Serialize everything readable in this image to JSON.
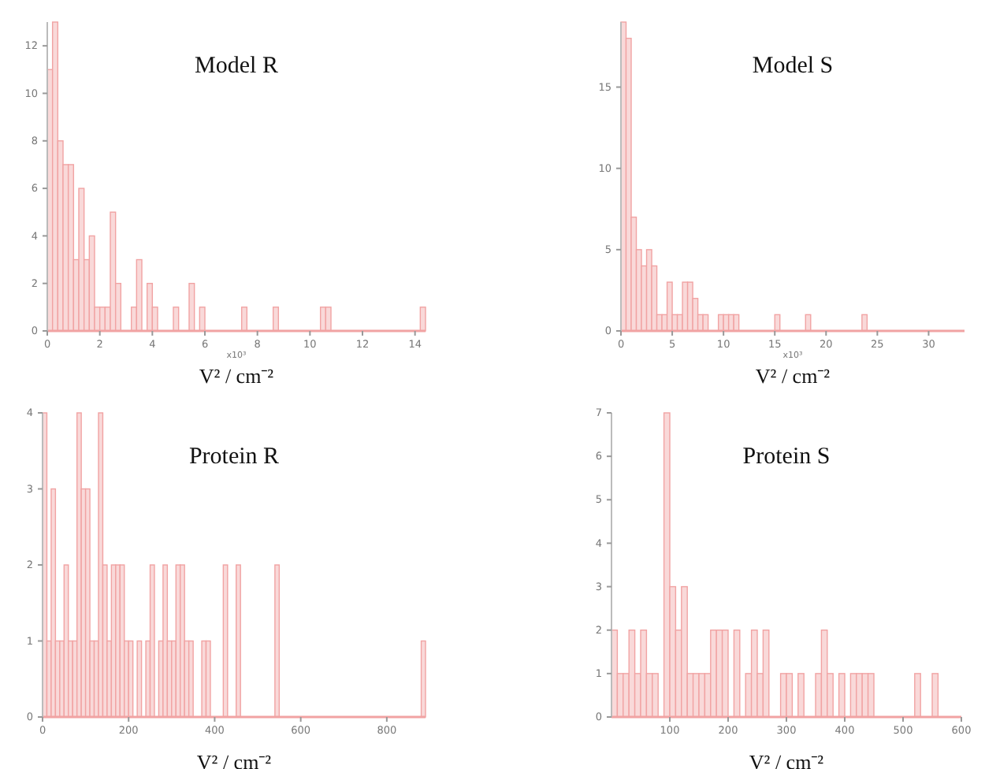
{
  "chart_data": [
    {
      "type": "histogram",
      "title": "Model R",
      "xlabel": "V² / cm⁻²",
      "annotations": [
        "x10³"
      ],
      "color": "#f9d9d9",
      "xlim": [
        0,
        14.4
      ],
      "xticks": [
        0,
        2,
        4,
        6,
        8,
        10,
        12,
        14
      ],
      "ylim": [
        0,
        13
      ],
      "yticks": [
        0,
        2,
        4,
        6,
        8,
        10,
        12
      ],
      "bins": [
        0,
        0.2,
        0.4,
        0.6,
        0.8,
        1,
        1.2,
        1.4,
        1.6,
        1.8,
        2,
        2.2,
        2.4,
        2.6,
        2.8,
        3,
        3.2,
        3.4,
        3.6,
        3.8,
        4,
        4.2,
        4.4,
        4.6,
        4.8,
        5,
        5.2,
        5.4,
        5.6,
        5.8,
        6,
        6.2,
        6.4,
        6.6,
        6.8,
        7,
        7.2,
        7.4,
        7.6,
        7.8,
        8,
        8.2,
        8.4,
        8.6,
        8.8,
        9,
        9.2,
        9.4,
        9.6,
        9.8,
        10,
        10.2,
        10.4,
        10.6,
        10.8,
        11,
        11.2,
        11.4,
        11.6,
        11.8,
        12,
        12.2,
        12.4,
        12.6,
        12.8,
        13,
        13.2,
        13.4,
        13.6,
        13.8,
        14,
        14.2,
        14.4
      ],
      "values": [
        11,
        13,
        8,
        7,
        7,
        3,
        6,
        3,
        4,
        1,
        1,
        1,
        5,
        2,
        0,
        0,
        1,
        3,
        0,
        2,
        1,
        0,
        0,
        0,
        1,
        0,
        0,
        2,
        0,
        1,
        0,
        0,
        0,
        0,
        0,
        0,
        0,
        1,
        0,
        0,
        0,
        0,
        0,
        1,
        0,
        0,
        0,
        0,
        0,
        0,
        0,
        0,
        1,
        1,
        0,
        0,
        0,
        0,
        0,
        0,
        0,
        0,
        0,
        0,
        0,
        0,
        0,
        0,
        0,
        0,
        0,
        1
      ]
    },
    {
      "type": "histogram",
      "title": "Model S",
      "xlabel": "V² / cm⁻²",
      "annotations": [
        "x10³"
      ],
      "color": "#f9d9d9",
      "xlim": [
        0,
        33.5
      ],
      "xticks": [
        0,
        5,
        10,
        15,
        20,
        25,
        30
      ],
      "ylim": [
        0,
        19
      ],
      "yticks": [
        0,
        5,
        10,
        15
      ],
      "bins": [
        0,
        0.5,
        1,
        1.5,
        2,
        2.5,
        3,
        3.5,
        4,
        4.5,
        5,
        5.5,
        6,
        6.5,
        7,
        7.5,
        8,
        8.5,
        9,
        9.5,
        10,
        10.5,
        11,
        11.5,
        12,
        12.5,
        13,
        13.5,
        14,
        14.5,
        15,
        15.5,
        16,
        16.5,
        17,
        17.5,
        18,
        18.5,
        19,
        19.5,
        20,
        20.5,
        21,
        21.5,
        22,
        22.5,
        23,
        23.5,
        24,
        24.5,
        25,
        25.5,
        26,
        26.5,
        27,
        27.5,
        28,
        28.5,
        29,
        29.5,
        30,
        30.5,
        31,
        31.5,
        32,
        32.5,
        33,
        33.5
      ],
      "values": [
        19,
        18,
        7,
        5,
        4,
        5,
        4,
        1,
        1,
        3,
        1,
        1,
        3,
        3,
        2,
        1,
        1,
        0,
        0,
        1,
        1,
        1,
        1,
        0,
        0,
        0,
        0,
        0,
        0,
        0,
        1,
        0,
        0,
        0,
        0,
        0,
        1,
        0,
        0,
        0,
        0,
        0,
        0,
        0,
        0,
        0,
        0,
        1,
        0,
        0,
        0,
        0,
        0,
        0,
        0,
        0,
        0,
        0,
        0,
        0,
        0,
        0,
        0,
        0,
        0,
        0,
        0
      ]
    },
    {
      "type": "histogram",
      "title": "Protein R",
      "xlabel": "V² / cm⁻²",
      "color": "#f9d9d9",
      "xlim": [
        0,
        890
      ],
      "xticks": [
        0,
        200,
        400,
        600,
        800
      ],
      "ylim": [
        0,
        4
      ],
      "yticks": [
        0,
        1,
        2,
        3,
        4
      ],
      "bins": [
        0,
        10,
        20,
        30,
        40,
        50,
        60,
        70,
        80,
        90,
        100,
        110,
        120,
        130,
        140,
        150,
        160,
        170,
        180,
        190,
        200,
        210,
        220,
        230,
        240,
        250,
        260,
        270,
        280,
        290,
        300,
        310,
        320,
        330,
        340,
        350,
        360,
        370,
        380,
        390,
        400,
        410,
        420,
        430,
        440,
        450,
        460,
        470,
        480,
        490,
        500,
        510,
        520,
        530,
        540,
        550,
        560,
        570,
        580,
        590,
        600,
        610,
        620,
        630,
        640,
        650,
        660,
        670,
        680,
        690,
        700,
        710,
        720,
        730,
        740,
        750,
        760,
        770,
        780,
        790,
        800,
        810,
        820,
        830,
        840,
        850,
        860,
        870,
        880,
        890
      ],
      "values": [
        4,
        1,
        3,
        1,
        1,
        2,
        1,
        1,
        4,
        3,
        3,
        1,
        1,
        4,
        2,
        1,
        2,
        2,
        2,
        1,
        1,
        0,
        1,
        0,
        1,
        2,
        0,
        1,
        2,
        1,
        1,
        2,
        2,
        1,
        1,
        0,
        0,
        1,
        1,
        0,
        0,
        0,
        2,
        0,
        0,
        2,
        0,
        0,
        0,
        0,
        0,
        0,
        0,
        0,
        2,
        0,
        0,
        0,
        0,
        0,
        0,
        0,
        0,
        0,
        0,
        0,
        0,
        0,
        0,
        0,
        0,
        0,
        0,
        0,
        0,
        0,
        0,
        0,
        0,
        0,
        0,
        0,
        0,
        0,
        0,
        0,
        0,
        0,
        1
      ]
    },
    {
      "type": "histogram",
      "title": "Protein S",
      "xlabel": "V² / cm⁻²",
      "color": "#f9d9d9",
      "xlim": [
        0,
        600
      ],
      "xticks": [
        100,
        200,
        300,
        400,
        500,
        600
      ],
      "ylim": [
        0,
        7
      ],
      "yticks": [
        0,
        1,
        2,
        3,
        4,
        5,
        6,
        7
      ],
      "bins": [
        0,
        10,
        20,
        30,
        40,
        50,
        60,
        70,
        80,
        90,
        100,
        110,
        120,
        130,
        140,
        150,
        160,
        170,
        180,
        190,
        200,
        210,
        220,
        230,
        240,
        250,
        260,
        270,
        280,
        290,
        300,
        310,
        320,
        330,
        340,
        350,
        360,
        370,
        380,
        390,
        400,
        410,
        420,
        430,
        440,
        450,
        460,
        470,
        480,
        490,
        500,
        510,
        520,
        530,
        540,
        550,
        560,
        570,
        580,
        590,
        600
      ],
      "values": [
        2,
        1,
        1,
        2,
        1,
        2,
        1,
        1,
        0,
        7,
        3,
        2,
        3,
        1,
        1,
        1,
        1,
        2,
        2,
        2,
        0,
        2,
        0,
        1,
        2,
        1,
        2,
        0,
        0,
        1,
        1,
        0,
        1,
        0,
        0,
        1,
        2,
        1,
        0,
        1,
        0,
        1,
        1,
        1,
        1,
        0,
        0,
        0,
        0,
        0,
        0,
        0,
        1,
        0,
        0,
        1,
        0,
        0,
        0,
        0
      ]
    }
  ]
}
